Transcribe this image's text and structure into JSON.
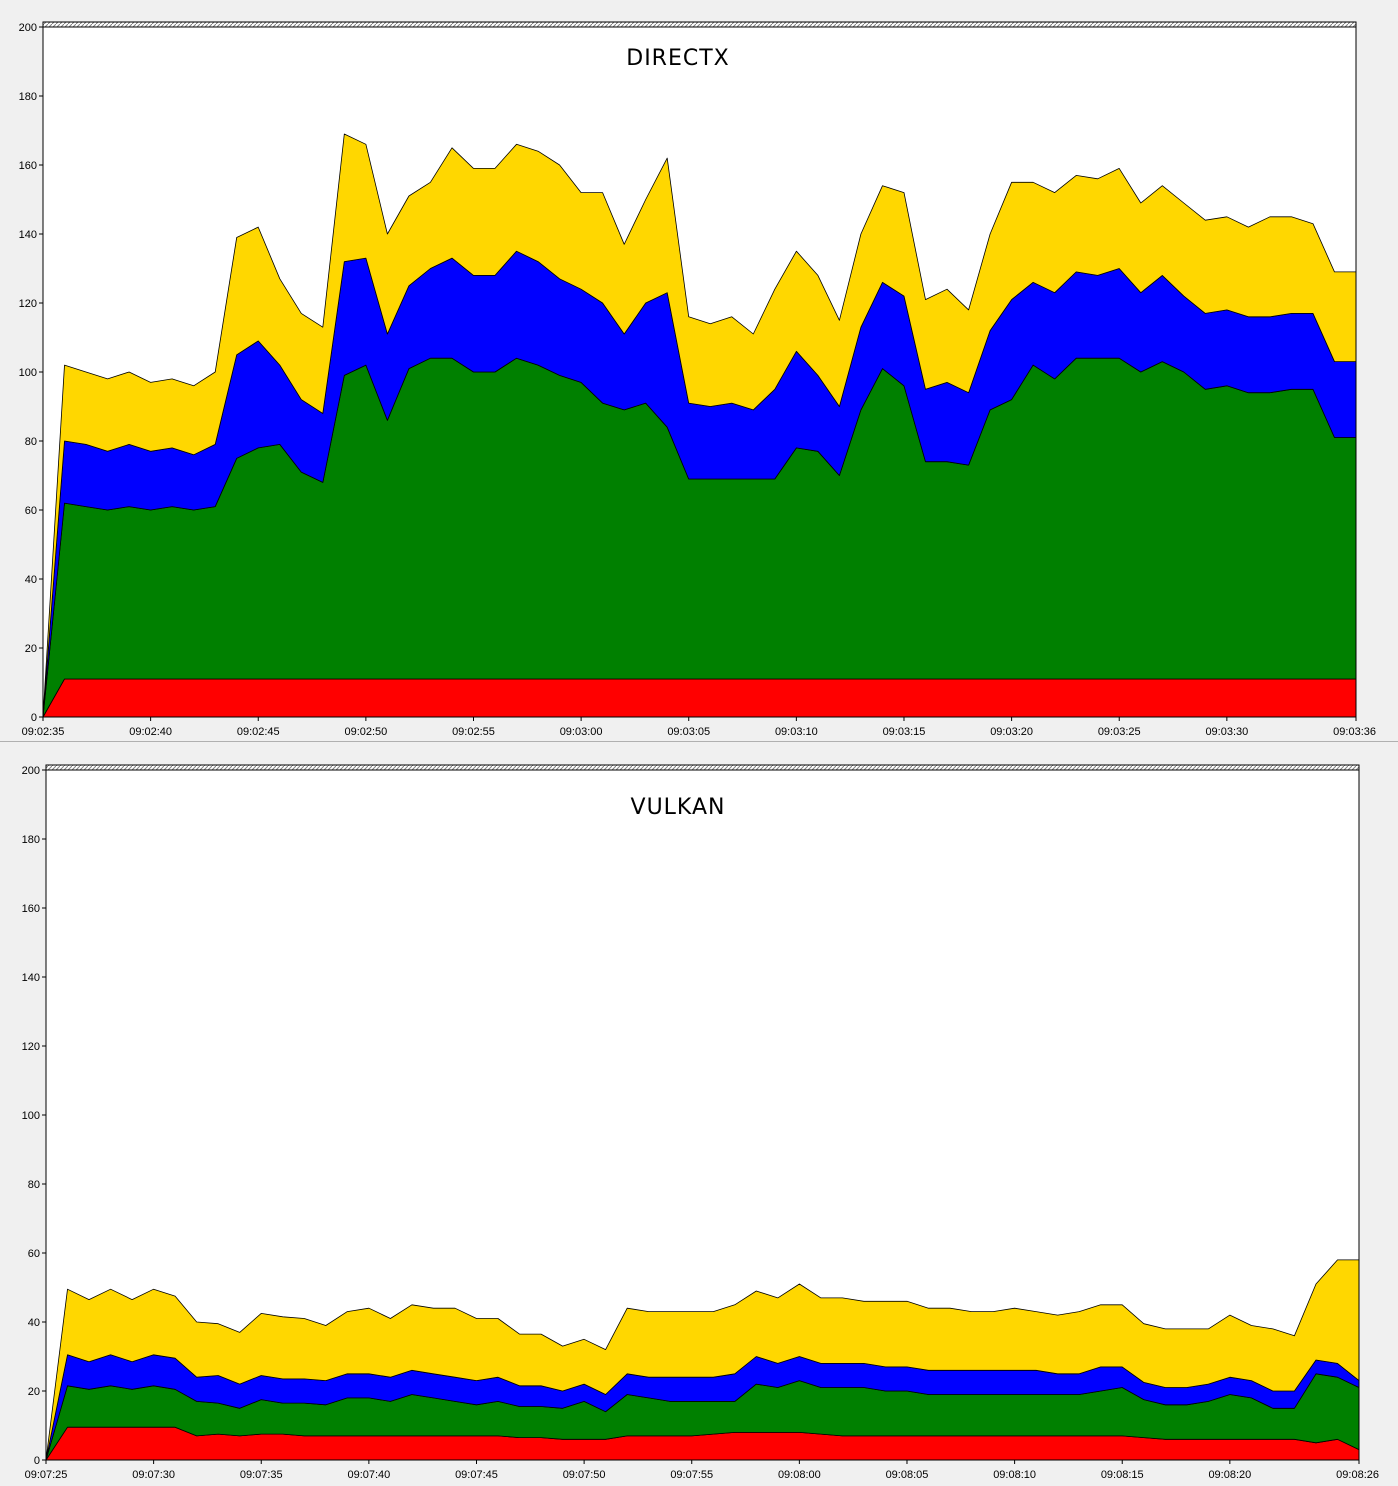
{
  "colors": {
    "red": "#ff0000",
    "green": "#008000",
    "blue": "#0000ff",
    "yellow": "#ffd700"
  },
  "chart_data": [
    {
      "type": "area",
      "stacked": true,
      "title": "DIRECTX",
      "ylim": [
        0,
        200
      ],
      "yticks": [
        0,
        20,
        40,
        60,
        80,
        100,
        120,
        140,
        160,
        180,
        200
      ],
      "xlim": [
        "09:02:35",
        "09:03:36"
      ],
      "xticks": [
        "09:02:35",
        "09:02:40",
        "09:02:45",
        "09:02:50",
        "09:02:55",
        "09:03:00",
        "09:03:05",
        "09:03:10",
        "09:03:15",
        "09:03:20",
        "09:03:25",
        "09:03:30",
        "09:03:36"
      ],
      "x": [
        "09:02:35",
        "09:02:36",
        "09:02:37",
        "09:02:38",
        "09:02:39",
        "09:02:40",
        "09:02:41",
        "09:02:42",
        "09:02:43",
        "09:02:44",
        "09:02:45",
        "09:02:46",
        "09:02:47",
        "09:02:48",
        "09:02:49",
        "09:02:50",
        "09:02:51",
        "09:02:52",
        "09:02:53",
        "09:02:54",
        "09:02:55",
        "09:02:56",
        "09:02:57",
        "09:02:58",
        "09:02:59",
        "09:03:00",
        "09:03:01",
        "09:03:02",
        "09:03:03",
        "09:03:04",
        "09:03:05",
        "09:03:06",
        "09:03:07",
        "09:03:08",
        "09:03:09",
        "09:03:10",
        "09:03:11",
        "09:03:12",
        "09:03:13",
        "09:03:14",
        "09:03:15",
        "09:03:16",
        "09:03:17",
        "09:03:18",
        "09:03:19",
        "09:03:20",
        "09:03:21",
        "09:03:22",
        "09:03:23",
        "09:03:24",
        "09:03:25",
        "09:03:26",
        "09:03:27",
        "09:03:28",
        "09:03:29",
        "09:03:30",
        "09:03:31",
        "09:03:32",
        "09:03:33",
        "09:03:34",
        "09:03:35",
        "09:03:36"
      ],
      "series": [
        {
          "color": "#ff0000",
          "values": [
            0,
            11,
            11,
            11,
            11,
            11,
            11,
            11,
            11,
            11,
            11,
            11,
            11,
            11,
            11,
            11,
            11,
            11,
            11,
            11,
            11,
            11,
            11,
            11,
            11,
            11,
            11,
            11,
            11,
            11,
            11,
            11,
            11,
            11,
            11,
            11,
            11,
            11,
            11,
            11,
            11,
            11,
            11,
            11,
            11,
            11,
            11,
            11,
            11,
            11,
            11,
            11,
            11,
            11,
            11,
            11,
            11,
            11,
            11,
            11,
            11,
            11
          ]
        },
        {
          "color": "#008000",
          "values": [
            0,
            51,
            50,
            49,
            50,
            49,
            50,
            49,
            50,
            64,
            67,
            68,
            60,
            57,
            88,
            91,
            75,
            90,
            93,
            93,
            89,
            89,
            93,
            91,
            88,
            86,
            80,
            78,
            80,
            73,
            58,
            58,
            58,
            58,
            58,
            67,
            66,
            59,
            78,
            90,
            85,
            63,
            63,
            62,
            78,
            81,
            91,
            87,
            93,
            93,
            93,
            89,
            92,
            89,
            84,
            85,
            83,
            83,
            84,
            84,
            70,
            70
          ]
        },
        {
          "color": "#0000ff",
          "values": [
            0,
            18,
            18,
            17,
            18,
            17,
            17,
            16,
            18,
            30,
            31,
            23,
            21,
            20,
            33,
            31,
            25,
            24,
            26,
            29,
            28,
            28,
            31,
            30,
            28,
            27,
            29,
            22,
            29,
            39,
            22,
            21,
            22,
            20,
            26,
            28,
            22,
            20,
            24,
            25,
            26,
            21,
            23,
            21,
            23,
            29,
            24,
            25,
            25,
            24,
            26,
            23,
            25,
            22,
            22,
            22,
            22,
            22,
            22,
            22,
            22,
            22
          ]
        },
        {
          "color": "#ffd700",
          "values": [
            0,
            22,
            21,
            21,
            21,
            20,
            20,
            20,
            21,
            34,
            33,
            25,
            25,
            25,
            37,
            33,
            29,
            26,
            25,
            32,
            31,
            31,
            31,
            32,
            33,
            28,
            32,
            26,
            30,
            39,
            25,
            24,
            25,
            22,
            29,
            29,
            29,
            25,
            27,
            28,
            30,
            26,
            27,
            24,
            28,
            34,
            29,
            29,
            28,
            28,
            29,
            26,
            26,
            27,
            27,
            27,
            26,
            29,
            28,
            26,
            26,
            26
          ]
        }
      ]
    },
    {
      "type": "area",
      "stacked": true,
      "title": "VULKAN",
      "ylim": [
        0,
        200
      ],
      "yticks": [
        0,
        20,
        40,
        60,
        80,
        100,
        120,
        140,
        160,
        180,
        200
      ],
      "xlim": [
        "09:07:25",
        "09:08:26"
      ],
      "xticks": [
        "09:07:25",
        "09:07:30",
        "09:07:35",
        "09:07:40",
        "09:07:45",
        "09:07:50",
        "09:07:55",
        "09:08:00",
        "09:08:05",
        "09:08:10",
        "09:08:15",
        "09:08:20",
        "09:08:26"
      ],
      "x": [
        "09:07:25",
        "09:07:26",
        "09:07:27",
        "09:07:28",
        "09:07:29",
        "09:07:30",
        "09:07:31",
        "09:07:32",
        "09:07:33",
        "09:07:34",
        "09:07:35",
        "09:07:36",
        "09:07:37",
        "09:07:38",
        "09:07:39",
        "09:07:40",
        "09:07:41",
        "09:07:42",
        "09:07:43",
        "09:07:44",
        "09:07:45",
        "09:07:46",
        "09:07:47",
        "09:07:48",
        "09:07:49",
        "09:07:50",
        "09:07:51",
        "09:07:52",
        "09:07:53",
        "09:07:54",
        "09:07:55",
        "09:07:56",
        "09:07:57",
        "09:07:58",
        "09:07:59",
        "09:08:00",
        "09:08:01",
        "09:08:02",
        "09:08:03",
        "09:08:04",
        "09:08:05",
        "09:08:06",
        "09:08:07",
        "09:08:08",
        "09:08:09",
        "09:08:10",
        "09:08:11",
        "09:08:12",
        "09:08:13",
        "09:08:14",
        "09:08:15",
        "09:08:16",
        "09:08:17",
        "09:08:18",
        "09:08:19",
        "09:08:20",
        "09:08:21",
        "09:08:22",
        "09:08:23",
        "09:08:24",
        "09:08:25",
        "09:08:26"
      ],
      "series": [
        {
          "color": "#ff0000",
          "values": [
            0,
            9.5,
            9.5,
            9.5,
            9.5,
            9.5,
            9.5,
            7,
            7.5,
            7,
            7.5,
            7.5,
            7,
            7,
            7,
            7,
            7,
            7,
            7,
            7,
            7,
            7,
            6.5,
            6.5,
            6,
            6,
            6,
            7,
            7,
            7,
            7,
            7.5,
            8,
            8,
            8,
            8,
            7.5,
            7,
            7,
            7,
            7,
            7,
            7,
            7,
            7,
            7,
            7,
            7,
            7,
            7,
            7,
            6.5,
            6,
            6,
            6,
            6,
            6,
            6,
            6,
            5,
            6,
            3
          ]
        },
        {
          "color": "#008000",
          "values": [
            0,
            12,
            11,
            12,
            11,
            12,
            11,
            10,
            9,
            8,
            10,
            9,
            9.5,
            9,
            11,
            11,
            10,
            12,
            11,
            10,
            9,
            10,
            9,
            9,
            9,
            11,
            8,
            12,
            11,
            10,
            10,
            9.5,
            9,
            14,
            13,
            15,
            13.5,
            14,
            14,
            13,
            13,
            12,
            12,
            12,
            12,
            12,
            12,
            12,
            12,
            13,
            14,
            11,
            10,
            10,
            11,
            13,
            12,
            9,
            9,
            20,
            18,
            18
          ]
        },
        {
          "color": "#0000ff",
          "values": [
            0,
            9,
            8,
            9,
            8,
            9,
            9,
            7,
            8,
            7,
            7,
            7,
            7,
            7,
            7,
            7,
            7,
            7,
            7,
            7,
            7,
            7,
            6,
            6,
            5,
            5,
            5,
            6,
            6,
            7,
            7,
            7,
            8,
            8,
            7,
            7,
            7,
            7,
            7,
            7,
            7,
            7,
            7,
            7,
            7,
            7,
            7,
            6,
            6,
            7,
            6,
            5,
            5,
            5,
            5,
            5,
            5,
            5,
            5,
            4,
            4,
            2
          ]
        },
        {
          "color": "#ffd700",
          "values": [
            0,
            19,
            18,
            19,
            18,
            19,
            18,
            16,
            15,
            15,
            18,
            18,
            17.5,
            16,
            18,
            19,
            17,
            19,
            19,
            20,
            18,
            17,
            15,
            15,
            13,
            13,
            13,
            19,
            19,
            19,
            19,
            19,
            20,
            19,
            19,
            21,
            19,
            19,
            18,
            19,
            19,
            18,
            18,
            17,
            17,
            18,
            17,
            17,
            18,
            18,
            18,
            17,
            17,
            17,
            16,
            18,
            16,
            18,
            16,
            22,
            30,
            35
          ]
        }
      ]
    }
  ]
}
